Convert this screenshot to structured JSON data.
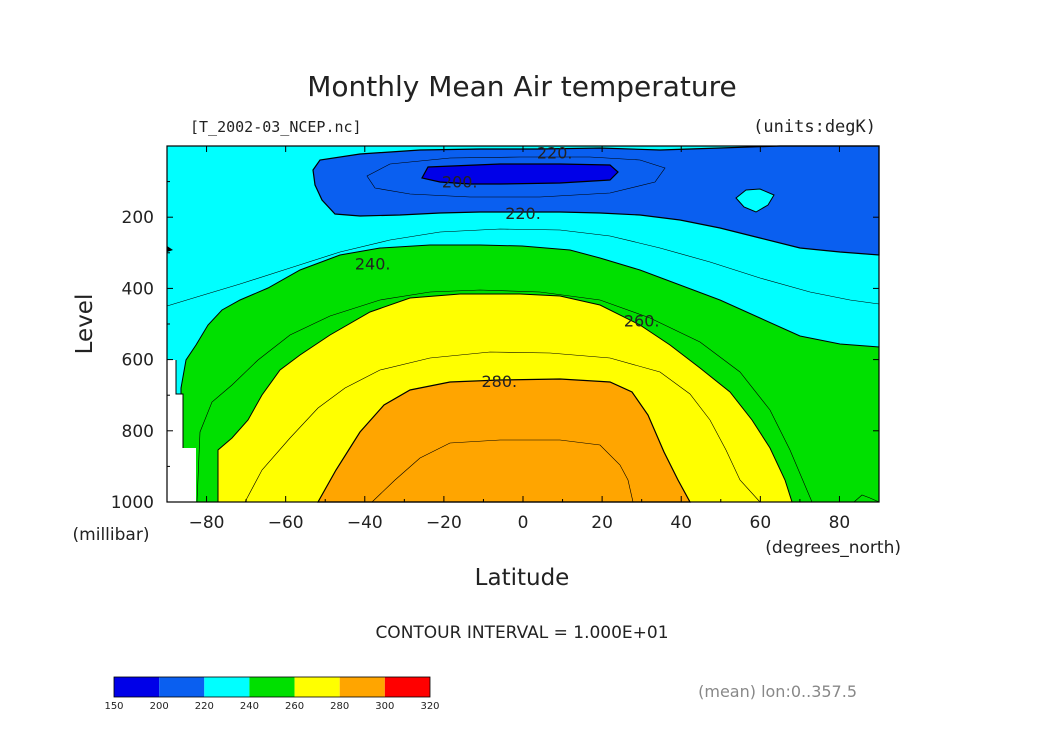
{
  "chart_data": {
    "type": "contour",
    "title": "Monthly Mean Air temperature",
    "source_file": "[T_2002-03_NCEP.nc]",
    "units": "(units:degK)",
    "xlabel": "Latitude",
    "xunits": "(degrees_north)",
    "ylabel": "Level",
    "yunits": "(millibar)",
    "xlim": [
      -90,
      90
    ],
    "ylim": [
      1000,
      0
    ],
    "x_ticks": [
      "−80",
      "−60",
      "−40",
      "−20",
      "0",
      "20",
      "40",
      "60",
      "80"
    ],
    "x_tick_values": [
      -80,
      -60,
      -40,
      -20,
      0,
      20,
      40,
      60,
      80
    ],
    "y_ticks": [
      "200",
      "400",
      "600",
      "800",
      "1000"
    ],
    "y_tick_values": [
      200,
      400,
      600,
      800,
      1000
    ],
    "contour_interval_text": "CONTOUR INTERVAL = 1.000E+01",
    "footnote": "(mean) lon:0..357.5",
    "contour_labels": [
      {
        "text": "220.",
        "lat": 8,
        "lev": 18
      },
      {
        "text": "200.",
        "lat": -16,
        "lev": 100
      },
      {
        "text": "220.",
        "lat": 0,
        "lev": 188
      },
      {
        "text": "240.",
        "lat": -38,
        "lev": 330
      },
      {
        "text": "260.",
        "lat": 30,
        "lev": 490
      },
      {
        "text": "280.",
        "lat": -6,
        "lev": 660
      }
    ],
    "temperature_bands": [
      {
        "range": [
          150,
          200
        ],
        "color": "#0000e8"
      },
      {
        "range": [
          200,
          220
        ],
        "color": "#0a5ff0"
      },
      {
        "range": [
          220,
          240
        ],
        "color": "#00ffff"
      },
      {
        "range": [
          240,
          260
        ],
        "color": "#00e000"
      },
      {
        "range": [
          260,
          280
        ],
        "color": "#ffff00"
      },
      {
        "range": [
          280,
          300
        ],
        "color": "#ffa500"
      },
      {
        "range": [
          300,
          320
        ],
        "color": "#ff0000"
      }
    ],
    "colorbar_ticks": [
      "150",
      "200",
      "220",
      "240",
      "260",
      "280",
      "300",
      "320"
    ]
  }
}
